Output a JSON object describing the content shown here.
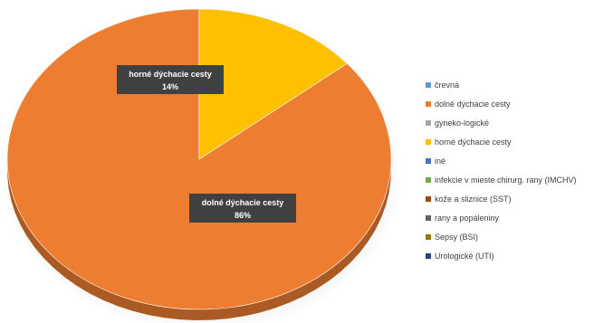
{
  "chart_data": {
    "type": "pie",
    "title": "",
    "categories": [
      "črevná",
      "dolné dýchacie cesty",
      "gyneko-logické",
      "horné dýchacie cesty",
      "iné",
      "infekcie v mieste chirurg. rany (IMCHV)",
      "kože a sliznice (SST)",
      "rany a popáleniny",
      "Sepsy (BSI)",
      "Urologické (UTI)"
    ],
    "values": [
      0,
      86,
      0,
      14,
      0,
      0,
      0,
      0,
      0,
      0
    ],
    "colors": [
      "#5B9BD5",
      "#ED7D31",
      "#A5A5A5",
      "#FFC000",
      "#4472C4",
      "#70AD47",
      "#9E480E",
      "#636363",
      "#997300",
      "#264478"
    ],
    "data_labels": [
      {
        "category": "horné dýchacie cesty",
        "name": "horné dýchacie cesty",
        "percent": "14%"
      },
      {
        "category": "dolné dýchacie cesty",
        "name": "dolné dýchacie cesty",
        "percent": "86%"
      }
    ],
    "legend_position": "right"
  }
}
